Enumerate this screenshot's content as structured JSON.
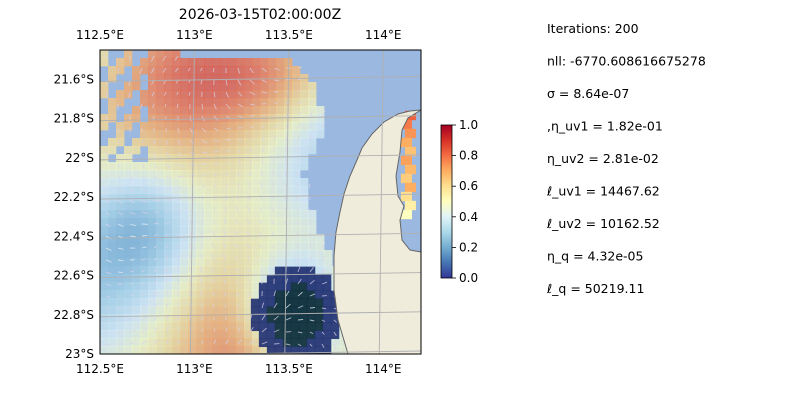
{
  "chart_data": {
    "type": "heatmap",
    "title": "2026-03-15T02:00:00Z",
    "x_ticks": [
      "112.5°E",
      "113°E",
      "113.5°E",
      "114°E"
    ],
    "x_tick_values": [
      112.5,
      113.0,
      113.5,
      114.0
    ],
    "y_ticks": [
      "21.6°S",
      "21.8°S",
      "22°S",
      "22.2°S",
      "22.4°S",
      "22.6°S",
      "22.8°S",
      "23°S"
    ],
    "y_tick_values": [
      -21.6,
      -21.8,
      -22.0,
      -22.2,
      -22.4,
      -22.6,
      -22.8,
      -23.0
    ],
    "xlim": [
      112.5,
      114.2
    ],
    "ylim": [
      -23.0,
      -21.45
    ],
    "grid": true,
    "colormap": "RdYlBu_r",
    "colorbar": {
      "ticks": [
        "0.0",
        "0.2",
        "0.4",
        "0.6",
        "0.8",
        "1.0"
      ],
      "tick_values": [
        0.0,
        0.2,
        0.4,
        0.6,
        0.8,
        1.0
      ],
      "range": [
        0.0,
        1.0
      ]
    },
    "colors": {
      "ocean": "#9ab8e0",
      "land": "#efecdc",
      "coastline": "#666666",
      "gridline": "#b0b0b0"
    }
  },
  "params": [
    "Iterations: 200",
    "nll: -6770.608616675278",
    "σ = 8.64e-07",
    ",η_uv1 = 1.82e-01",
    "η_uv2 = 2.81e-02",
    "ℓ_uv1 = 14467.62",
    "ℓ_uv2 = 10162.52",
    "η_q = 4.32e-05",
    "ℓ_q = 50219.11"
  ]
}
